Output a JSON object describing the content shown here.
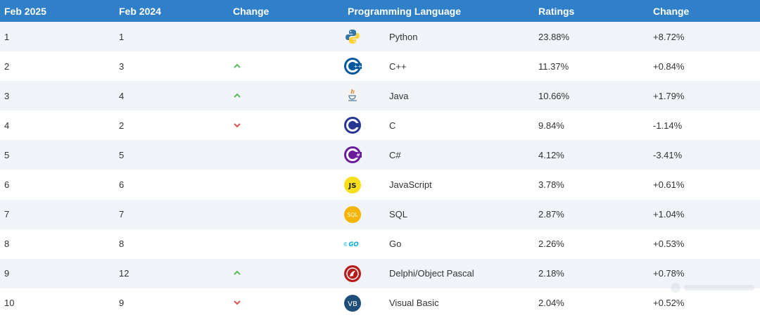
{
  "headers": [
    "Feb 2025",
    "Feb 2024",
    "Change",
    "Programming Language",
    "Ratings",
    "Change"
  ],
  "colors": {
    "header_bg": "#2f80c9",
    "up": "#5cb85c",
    "down": "#d9534f",
    "row_alt": "#f1f4f8"
  },
  "rows": [
    {
      "rank": "1",
      "prev": "1",
      "change": "none",
      "icon": "python-icon",
      "language": "Python",
      "rating": "23.88%",
      "delta": "+8.72%"
    },
    {
      "rank": "2",
      "prev": "3",
      "change": "up",
      "icon": "cpp-icon",
      "language": "C++",
      "rating": "11.37%",
      "delta": "+0.84%"
    },
    {
      "rank": "3",
      "prev": "4",
      "change": "up",
      "icon": "java-icon",
      "language": "Java",
      "rating": "10.66%",
      "delta": "+1.79%"
    },
    {
      "rank": "4",
      "prev": "2",
      "change": "down",
      "icon": "c-icon",
      "language": "C",
      "rating": "9.84%",
      "delta": "-1.14%"
    },
    {
      "rank": "5",
      "prev": "5",
      "change": "none",
      "icon": "csharp-icon",
      "language": "C#",
      "rating": "4.12%",
      "delta": "-3.41%"
    },
    {
      "rank": "6",
      "prev": "6",
      "change": "none",
      "icon": "javascript-icon",
      "language": "JavaScript",
      "rating": "3.78%",
      "delta": "+0.61%"
    },
    {
      "rank": "7",
      "prev": "7",
      "change": "none",
      "icon": "sql-icon",
      "language": "SQL",
      "rating": "2.87%",
      "delta": "+1.04%"
    },
    {
      "rank": "8",
      "prev": "8",
      "change": "none",
      "icon": "go-icon",
      "language": "Go",
      "rating": "2.26%",
      "delta": "+0.53%"
    },
    {
      "rank": "9",
      "prev": "12",
      "change": "up",
      "icon": "delphi-icon",
      "language": "Delphi/Object Pascal",
      "rating": "2.18%",
      "delta": "+0.78%"
    },
    {
      "rank": "10",
      "prev": "9",
      "change": "down",
      "icon": "visual-basic-icon",
      "language": "Visual Basic",
      "rating": "2.04%",
      "delta": "+0.52%"
    }
  ]
}
